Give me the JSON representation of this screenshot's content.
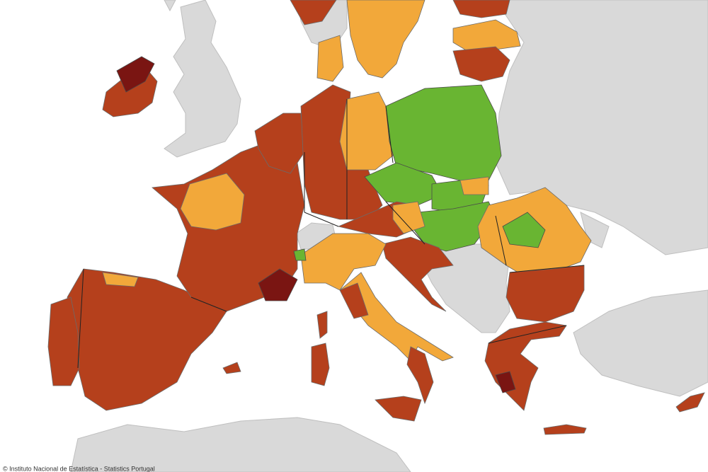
{
  "attribution": "© Instituto Nacional de Estatística - Statistics Portugal"
}
